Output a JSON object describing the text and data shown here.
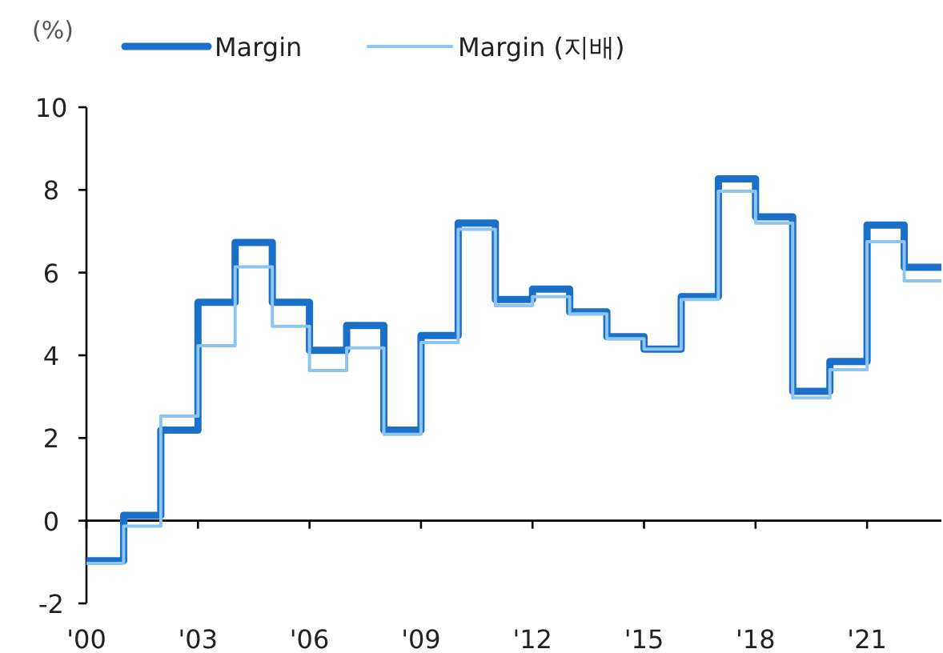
{
  "chart_data": {
    "type": "step",
    "ylabel": "(%)",
    "x": [
      2000,
      2001,
      2002,
      2003,
      2004,
      2005,
      2006,
      2007,
      2008,
      2009,
      2010,
      2011,
      2012,
      2013,
      2014,
      2015,
      2016,
      2017,
      2018,
      2019,
      2020,
      2021,
      2022,
      2023
    ],
    "series": [
      {
        "name": "Margin",
        "color": "#1a70c8",
        "values": [
          -0.97,
          0.13,
          2.19,
          5.28,
          6.73,
          5.28,
          4.12,
          4.72,
          2.19,
          4.48,
          7.2,
          5.35,
          5.6,
          5.05,
          4.45,
          4.15,
          5.42,
          8.27,
          7.35,
          3.13,
          3.85,
          7.15,
          6.13,
          6.13
        ]
      },
      {
        "name": "Margin (지배)",
        "color": "#8ec4f0",
        "values": [
          -1.03,
          -0.13,
          2.53,
          4.23,
          6.14,
          4.7,
          3.63,
          4.18,
          2.09,
          4.31,
          7.05,
          5.2,
          5.42,
          5.0,
          4.4,
          4.15,
          5.35,
          7.97,
          7.2,
          2.97,
          3.65,
          6.75,
          5.8,
          5.8
        ]
      }
    ],
    "xlim": [
      2000,
      2023
    ],
    "ylim": [
      -2,
      10
    ],
    "xticks": [
      {
        "value": 2000,
        "label": "'00"
      },
      {
        "value": 2003,
        "label": "'03"
      },
      {
        "value": 2006,
        "label": "'06"
      },
      {
        "value": 2009,
        "label": "'09"
      },
      {
        "value": 2012,
        "label": "'12"
      },
      {
        "value": 2015,
        "label": "'15"
      },
      {
        "value": 2018,
        "label": "'18"
      },
      {
        "value": 2021,
        "label": "'21"
      }
    ],
    "yticks": [
      -2,
      0,
      2,
      4,
      6,
      8,
      10
    ],
    "legend": "top"
  }
}
